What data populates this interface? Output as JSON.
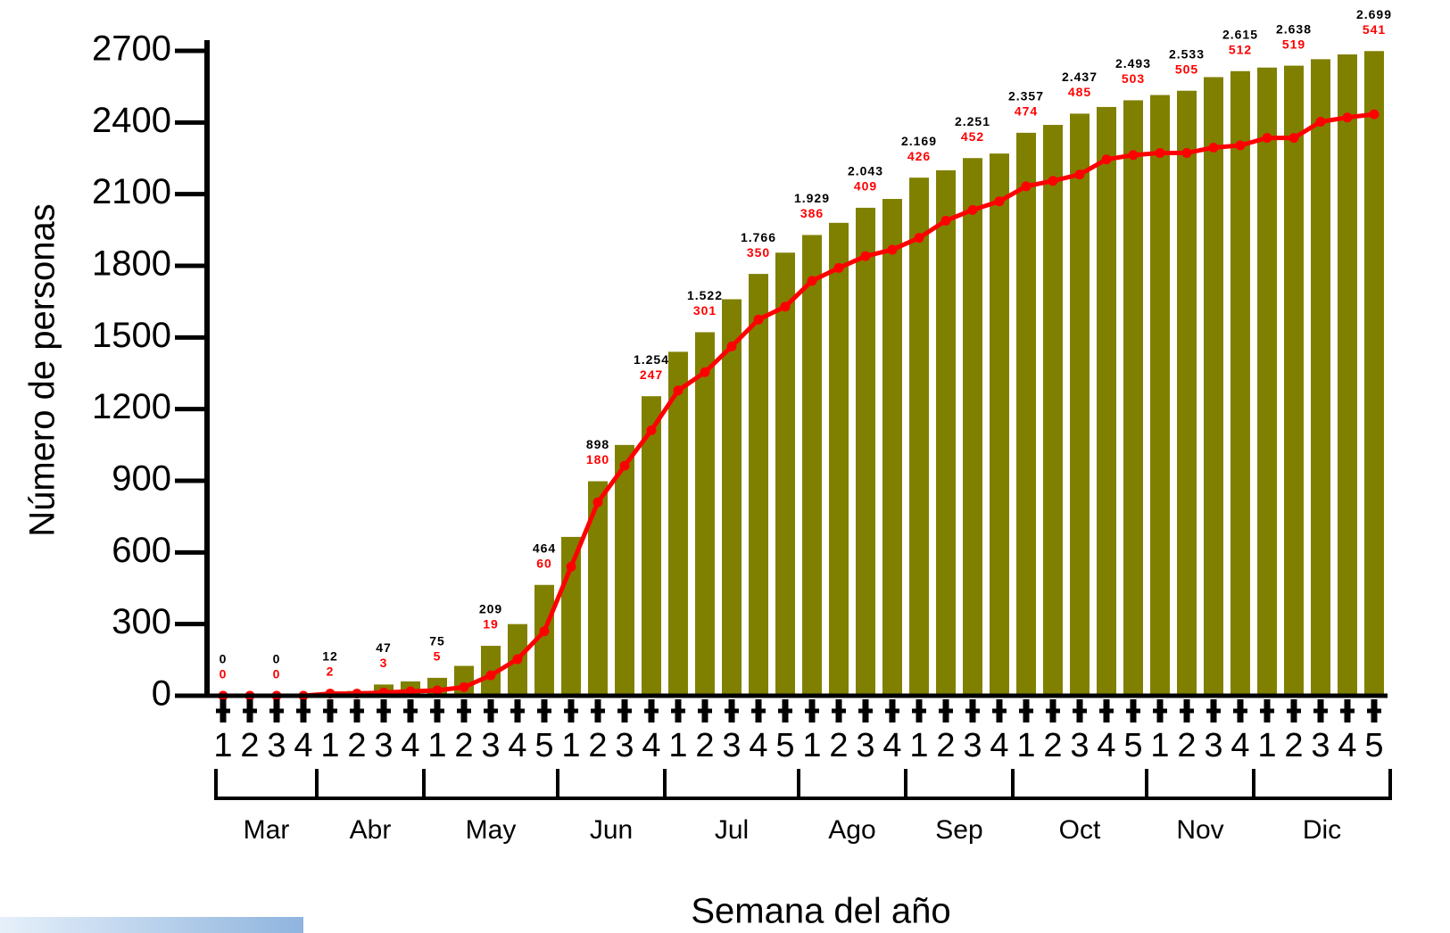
{
  "chart_data": {
    "type": "bar-line",
    "y_label": "Número de personas",
    "x_label": "Semana del año",
    "categories": [
      "1",
      "2",
      "3",
      "4",
      "1",
      "2",
      "3",
      "4",
      "1",
      "2",
      "3",
      "4",
      "5",
      "1",
      "2",
      "3",
      "4",
      "1",
      "2",
      "3",
      "4",
      "5",
      "1",
      "2",
      "3",
      "4",
      "1",
      "2",
      "3",
      "4",
      "1",
      "2",
      "3",
      "4",
      "5",
      "1",
      "2",
      "3",
      "4",
      "1",
      "2",
      "3",
      "4",
      "5"
    ],
    "months": [
      "Mar",
      "Abr",
      "May",
      "Jun",
      "Jul",
      "Ago",
      "Sep",
      "Oct",
      "Nov",
      "Dic"
    ],
    "ylim": [
      0,
      2700
    ],
    "yticks": [
      0,
      300,
      600,
      900,
      1200,
      1500,
      1800,
      2100,
      2400,
      2700
    ],
    "y2lim": [
      0,
      600
    ],
    "series": [
      {
        "kind": "bar",
        "color": "#808000",
        "label_color": "#000000",
        "values": [
          0,
          0,
          0,
          0,
          12,
          20,
          47,
          60,
          75,
          125,
          209,
          300,
          464,
          665,
          898,
          1050,
          1254,
          1440,
          1522,
          1660,
          1766,
          1855,
          1929,
          1980,
          2043,
          2080,
          2169,
          2200,
          2251,
          2270,
          2357,
          2390,
          2437,
          2465,
          2493,
          2515,
          2533,
          2590,
          2615,
          2630,
          2638,
          2665,
          2685,
          2699
        ],
        "value_labels": [
          "0",
          null,
          "0",
          null,
          "12",
          null,
          "47",
          null,
          "75",
          null,
          "209",
          null,
          "464",
          null,
          "898",
          null,
          "1.254",
          null,
          "1.522",
          null,
          "1.766",
          null,
          "1.929",
          null,
          "2.043",
          null,
          "2.169",
          null,
          "2.251",
          null,
          "2.357",
          null,
          "2.437",
          null,
          "2.493",
          null,
          "2.533",
          null,
          "2.615",
          null,
          "2.638",
          null,
          null,
          "2.699"
        ]
      },
      {
        "kind": "line",
        "axis": "y2",
        "color": "#ff0000",
        "values": [
          0,
          0,
          0,
          0,
          2,
          2,
          3,
          4,
          5,
          8,
          19,
          34,
          60,
          120,
          180,
          214,
          247,
          284,
          301,
          325,
          350,
          362,
          386,
          398,
          409,
          415,
          426,
          442,
          452,
          460,
          474,
          479,
          485,
          499,
          503,
          505,
          505,
          510,
          512,
          519,
          519,
          534,
          538,
          541
        ],
        "value_labels": [
          "0",
          null,
          "0",
          null,
          "2",
          null,
          "3",
          null,
          "5",
          null,
          "19",
          null,
          "60",
          null,
          "180",
          null,
          "247",
          null,
          "301",
          null,
          "350",
          null,
          "386",
          null,
          "409",
          null,
          "426",
          null,
          "452",
          null,
          "474",
          null,
          "485",
          null,
          "503",
          null,
          "505",
          null,
          "512",
          null,
          "519",
          null,
          null,
          "541"
        ]
      }
    ]
  }
}
